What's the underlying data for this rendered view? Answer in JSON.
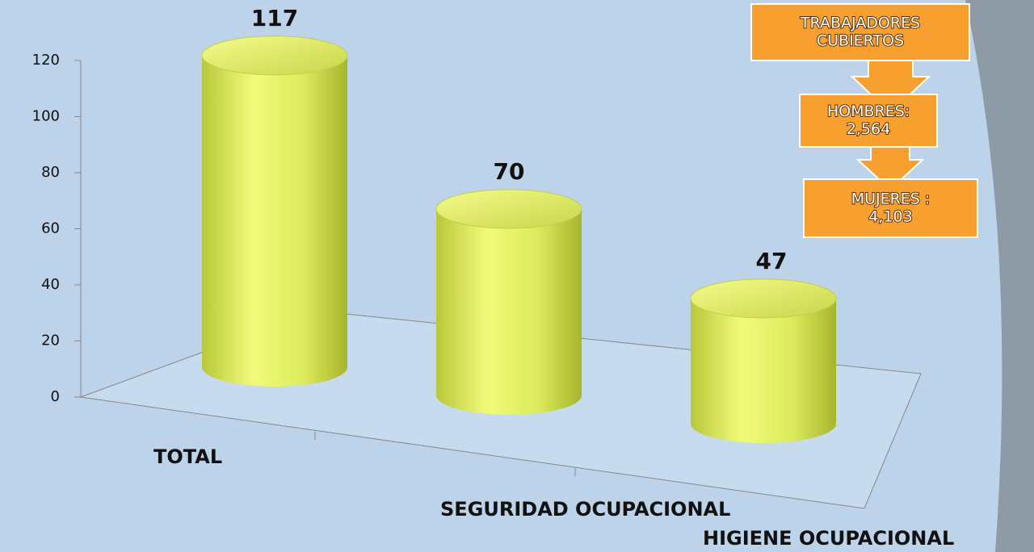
{
  "chart_data": {
    "type": "bar",
    "categories": [
      "TOTAL",
      "SEGURIDAD OCUPACIONAL",
      "HIGIENE OCUPACIONAL"
    ],
    "values": [
      117,
      70,
      47
    ],
    "color": "#e6f36a",
    "ylim": [
      0,
      120
    ],
    "yticks": [
      0,
      20,
      40,
      60,
      80,
      100,
      120
    ],
    "annotations": [
      [
        "TRABAJADORES",
        "CUBIERTOS"
      ],
      [
        "HOMBRES:",
        "2,564"
      ],
      [
        "MUJERES :",
        "4,103"
      ]
    ]
  }
}
